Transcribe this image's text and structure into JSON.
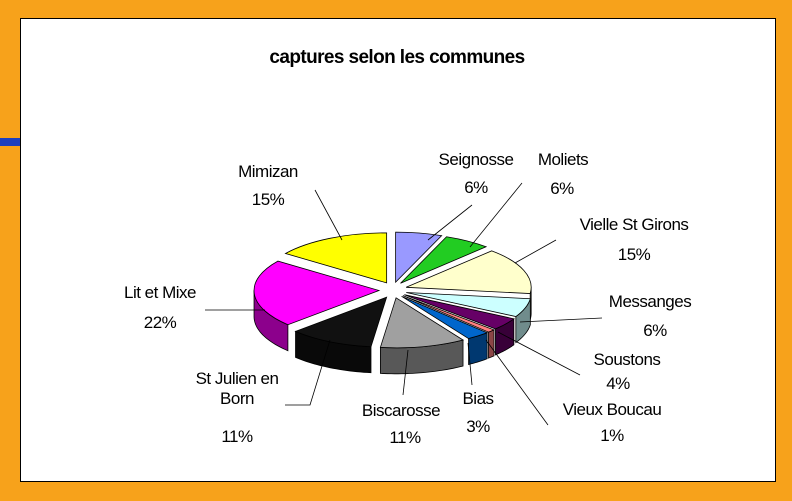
{
  "chart_data": {
    "type": "pie",
    "title": "captures selon les communes",
    "categories": [
      "Seignosse",
      "Moliets",
      "Vielle St Girons",
      "Messanges",
      "Soustons",
      "Vieux Boucau",
      "Bias",
      "Biscarosse",
      "St Julien en Born",
      "Lit et Mixe",
      "Mimizan"
    ],
    "values": [
      6,
      6,
      15,
      6,
      4,
      1,
      3,
      11,
      11,
      22,
      15
    ],
    "value_labels": [
      "6%",
      "6%",
      "15%",
      "6%",
      "4%",
      "1%",
      "3%",
      "11%",
      "11%",
      "22%",
      "15%"
    ],
    "colors": [
      "#9999ff",
      "#22cc22",
      "#ffffcc",
      "#ccffff",
      "#660066",
      "#ff8080",
      "#0066cc",
      "#a0a0a0",
      "#111111",
      "#ff00ff",
      "#ffff00"
    ]
  }
}
